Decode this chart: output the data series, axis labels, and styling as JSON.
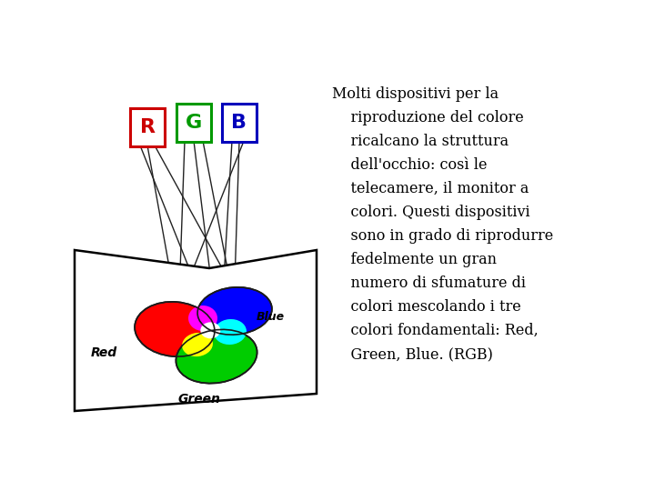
{
  "text_content": "Molti dispositivi per la\n    riproduzione del colore\n    ricalcano la struttura\n    dell'occhio: così le\n    telecamere, il monitor a\n    colori. Questi dispositivi\n    sono in grado di riprodurre\n    fedelmente un gran\n    numero di sfumature di\n    colori mescolando i tre\n    colori fondamentali: Red,\n    Green, Blue. (RGB)",
  "text_fontsize": 11.8,
  "bg_color": "#ffffff",
  "label_R": "R",
  "label_G": "G",
  "label_B": "B",
  "label_R_color": "#cc0000",
  "label_G_color": "#009900",
  "label_B_color": "#0000bb",
  "label_RED": "Red",
  "label_GREEN": "Green",
  "label_BLUE": "Blue"
}
